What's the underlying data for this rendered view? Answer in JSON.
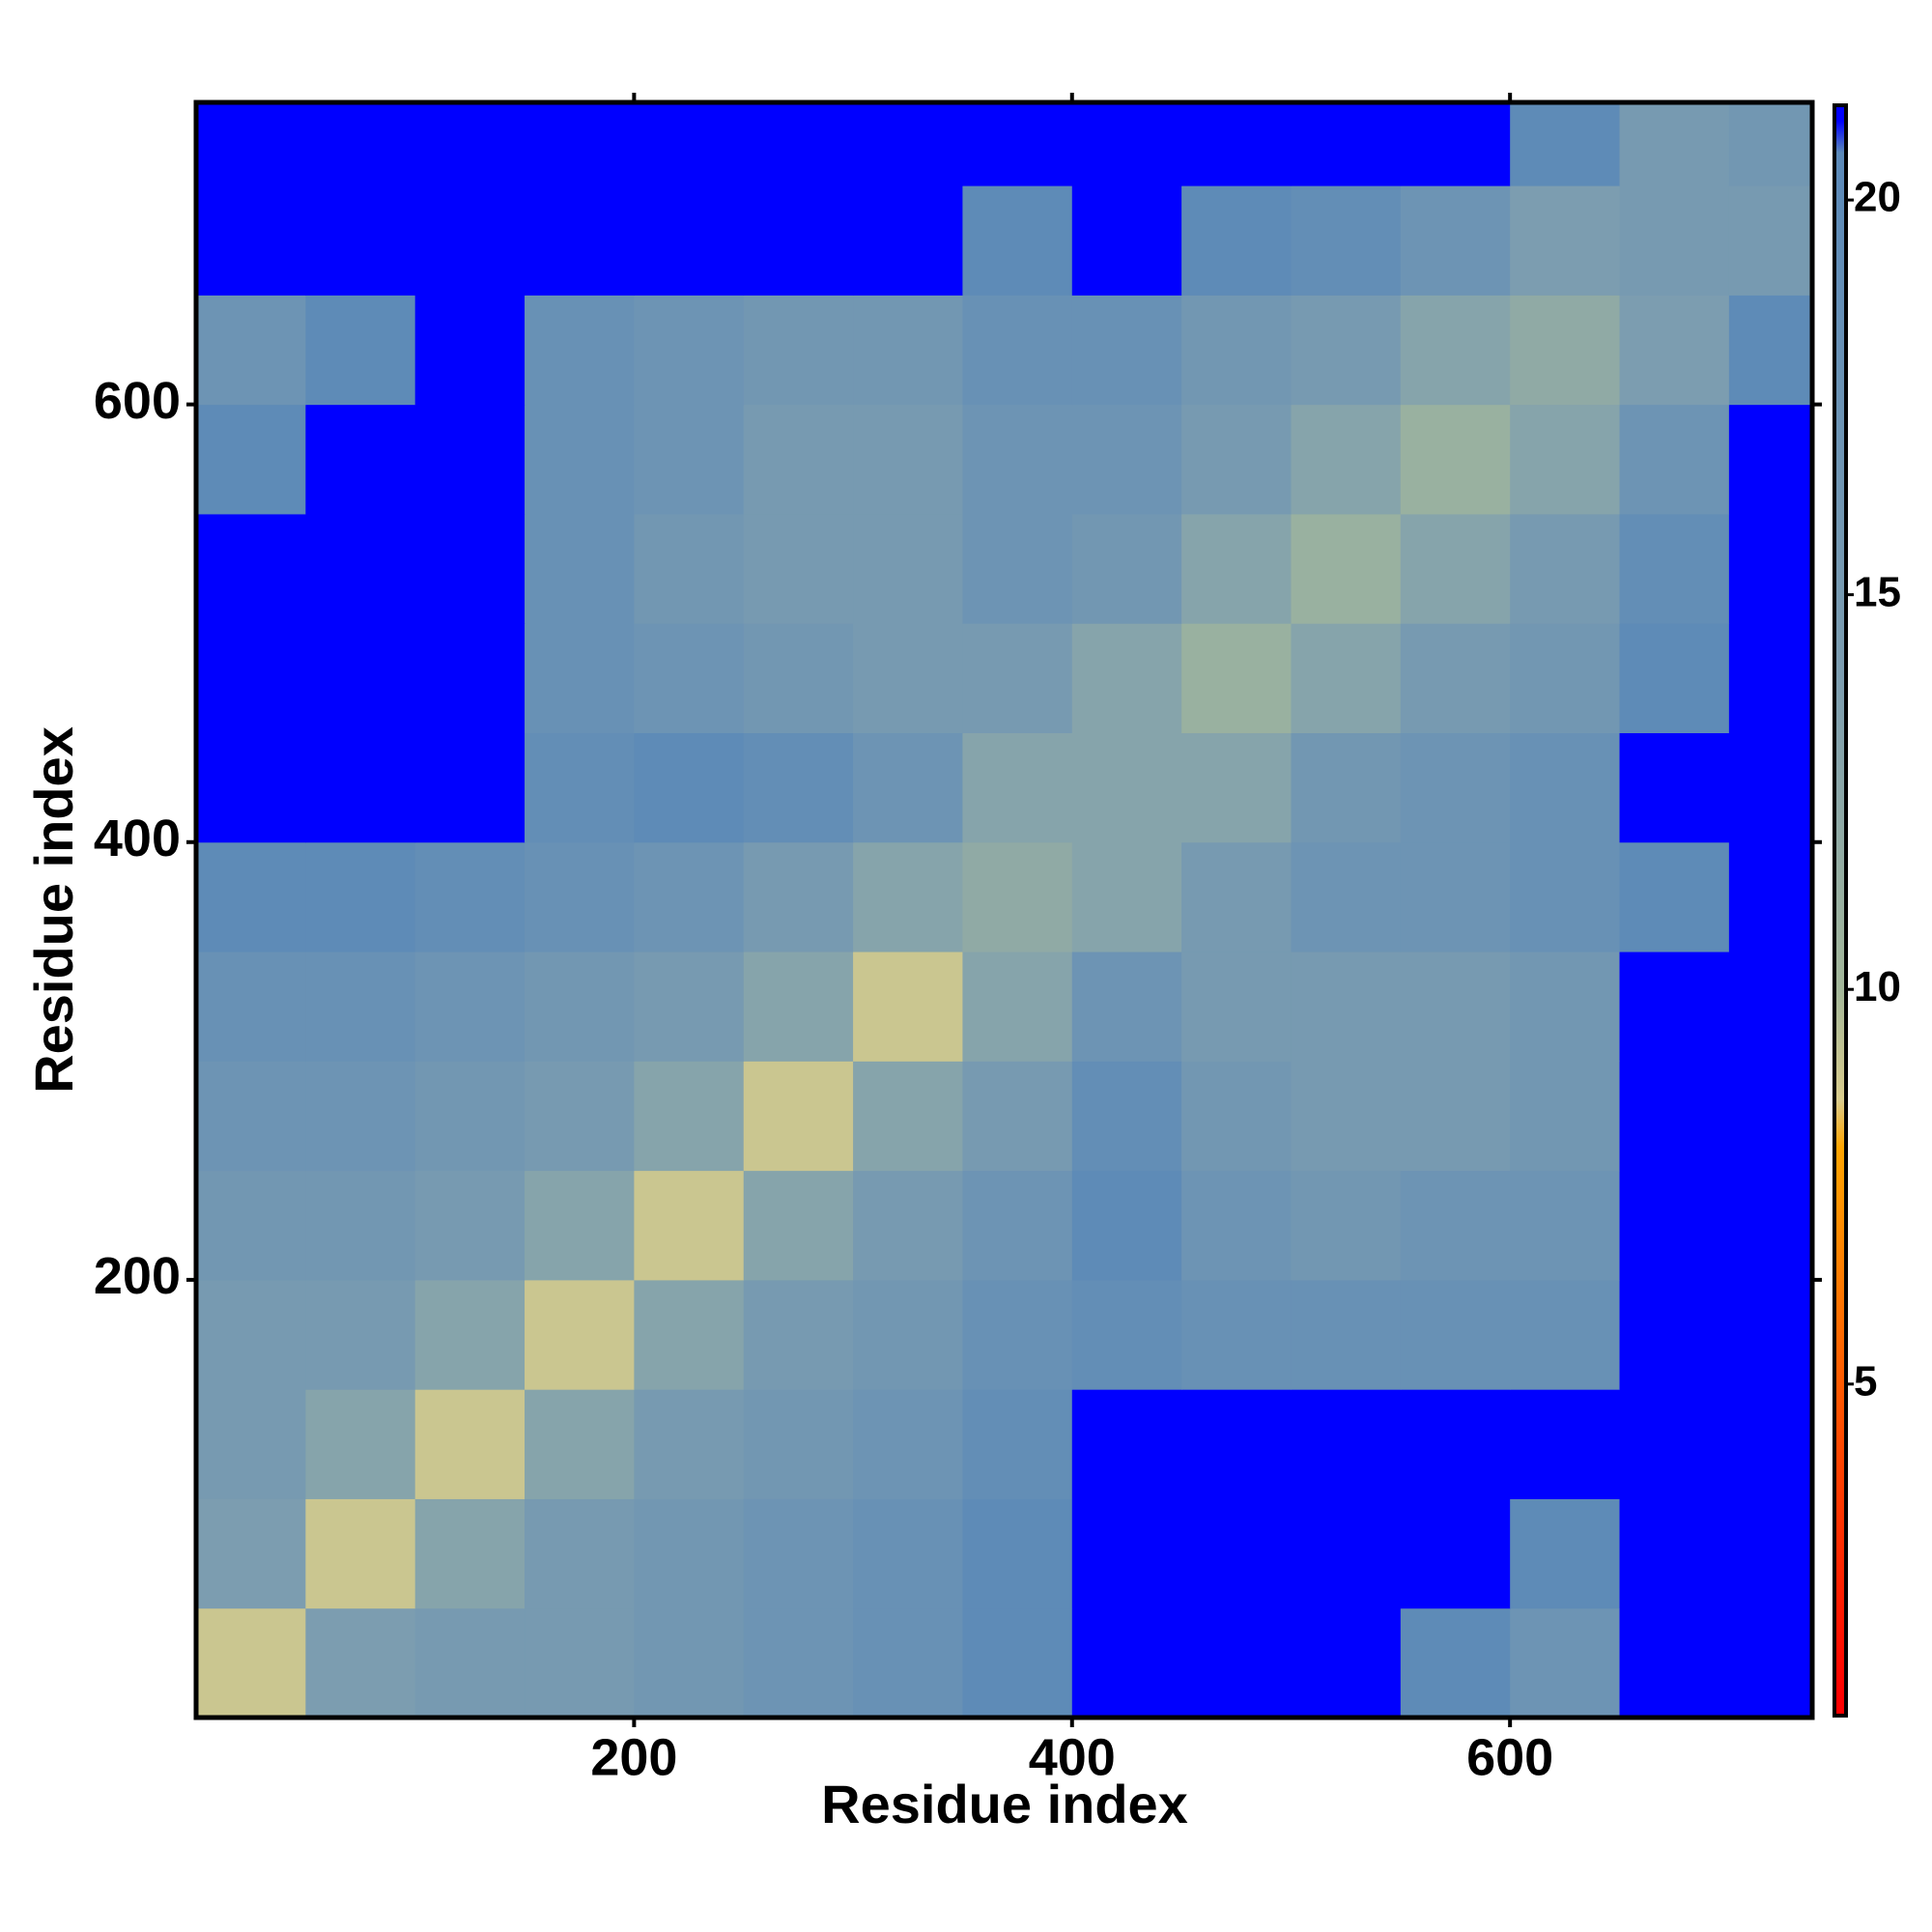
{
  "chart_data": {
    "type": "heatmap",
    "x_label": "Residue index",
    "y_label": "Residue index",
    "xbins": [
      0,
      50,
      100,
      150,
      200,
      250,
      300,
      350,
      400,
      450,
      500,
      550,
      600,
      650,
      700,
      738
    ],
    "ybins": [
      0,
      50,
      100,
      150,
      200,
      250,
      300,
      350,
      400,
      450,
      500,
      550,
      600,
      650,
      700,
      738
    ],
    "xlim": [
      0,
      738
    ],
    "ylim": [
      0,
      738
    ],
    "xticks": [
      200,
      400,
      600
    ],
    "yticks": [
      200,
      400,
      600
    ],
    "matrix": [
      [
        9,
        14,
        15,
        15,
        16,
        17,
        18,
        20,
        21,
        21,
        21,
        20,
        17,
        21,
        21
      ],
      [
        14,
        9,
        13,
        15,
        16,
        17,
        18,
        20,
        21,
        21,
        21,
        21,
        20,
        21,
        21
      ],
      [
        15,
        13,
        9,
        13,
        15,
        16,
        17,
        19,
        21,
        21,
        21,
        21,
        21,
        21,
        21
      ],
      [
        15,
        15,
        13,
        9,
        13,
        15,
        16,
        18,
        19,
        18,
        18,
        18,
        18,
        21,
        21
      ],
      [
        16,
        16,
        15,
        13,
        9,
        13,
        15,
        17,
        20,
        17,
        16,
        17,
        17,
        21,
        21
      ],
      [
        17,
        17,
        16,
        15,
        13,
        9,
        13,
        15,
        19,
        16,
        15,
        15,
        16,
        21,
        21
      ],
      [
        18,
        18,
        17,
        16,
        15,
        13,
        9,
        13,
        17,
        15,
        15,
        15,
        16,
        21,
        21
      ],
      [
        20,
        20,
        19,
        18,
        17,
        15,
        13,
        12,
        13,
        15,
        17,
        17,
        18,
        20,
        21
      ],
      [
        21,
        21,
        21,
        19,
        20,
        19,
        17,
        13,
        13,
        13,
        16,
        17,
        18,
        21,
        21
      ],
      [
        21,
        21,
        21,
        18,
        17,
        16,
        15,
        15,
        13,
        11,
        13,
        15,
        16,
        20,
        21
      ],
      [
        21,
        21,
        21,
        18,
        16,
        15,
        15,
        17,
        16,
        13,
        11,
        13,
        15,
        19,
        21
      ],
      [
        20,
        21,
        21,
        18,
        17,
        15,
        15,
        17,
        17,
        15,
        13,
        11,
        13,
        17,
        21
      ],
      [
        17,
        20,
        21,
        18,
        17,
        16,
        16,
        18,
        18,
        16,
        15,
        13,
        12,
        14,
        20
      ],
      [
        21,
        21,
        21,
        21,
        21,
        21,
        21,
        20,
        21,
        20,
        19,
        17,
        14,
        15,
        15
      ],
      [
        21,
        21,
        21,
        21,
        21,
        21,
        21,
        21,
        21,
        21,
        21,
        21,
        20,
        15,
        16
      ]
    ],
    "colorscale": [
      {
        "value": 1,
        "color": "#ff0000"
      },
      {
        "value": 5,
        "color": "#ff5a00"
      },
      {
        "value": 8,
        "color": "#ffa500"
      },
      {
        "value": 8.6,
        "color": "#d9cc8c"
      },
      {
        "value": 10,
        "color": "#a3b79a"
      },
      {
        "value": 14,
        "color": "#7c9db0"
      },
      {
        "value": 20.6,
        "color": "#5b89b8"
      },
      {
        "value": 21,
        "color": "#0000ff"
      }
    ],
    "colorbar_lim": [
      0.8,
      21.2
    ],
    "colorbar_ticks": [
      5,
      10,
      15,
      20
    ]
  }
}
